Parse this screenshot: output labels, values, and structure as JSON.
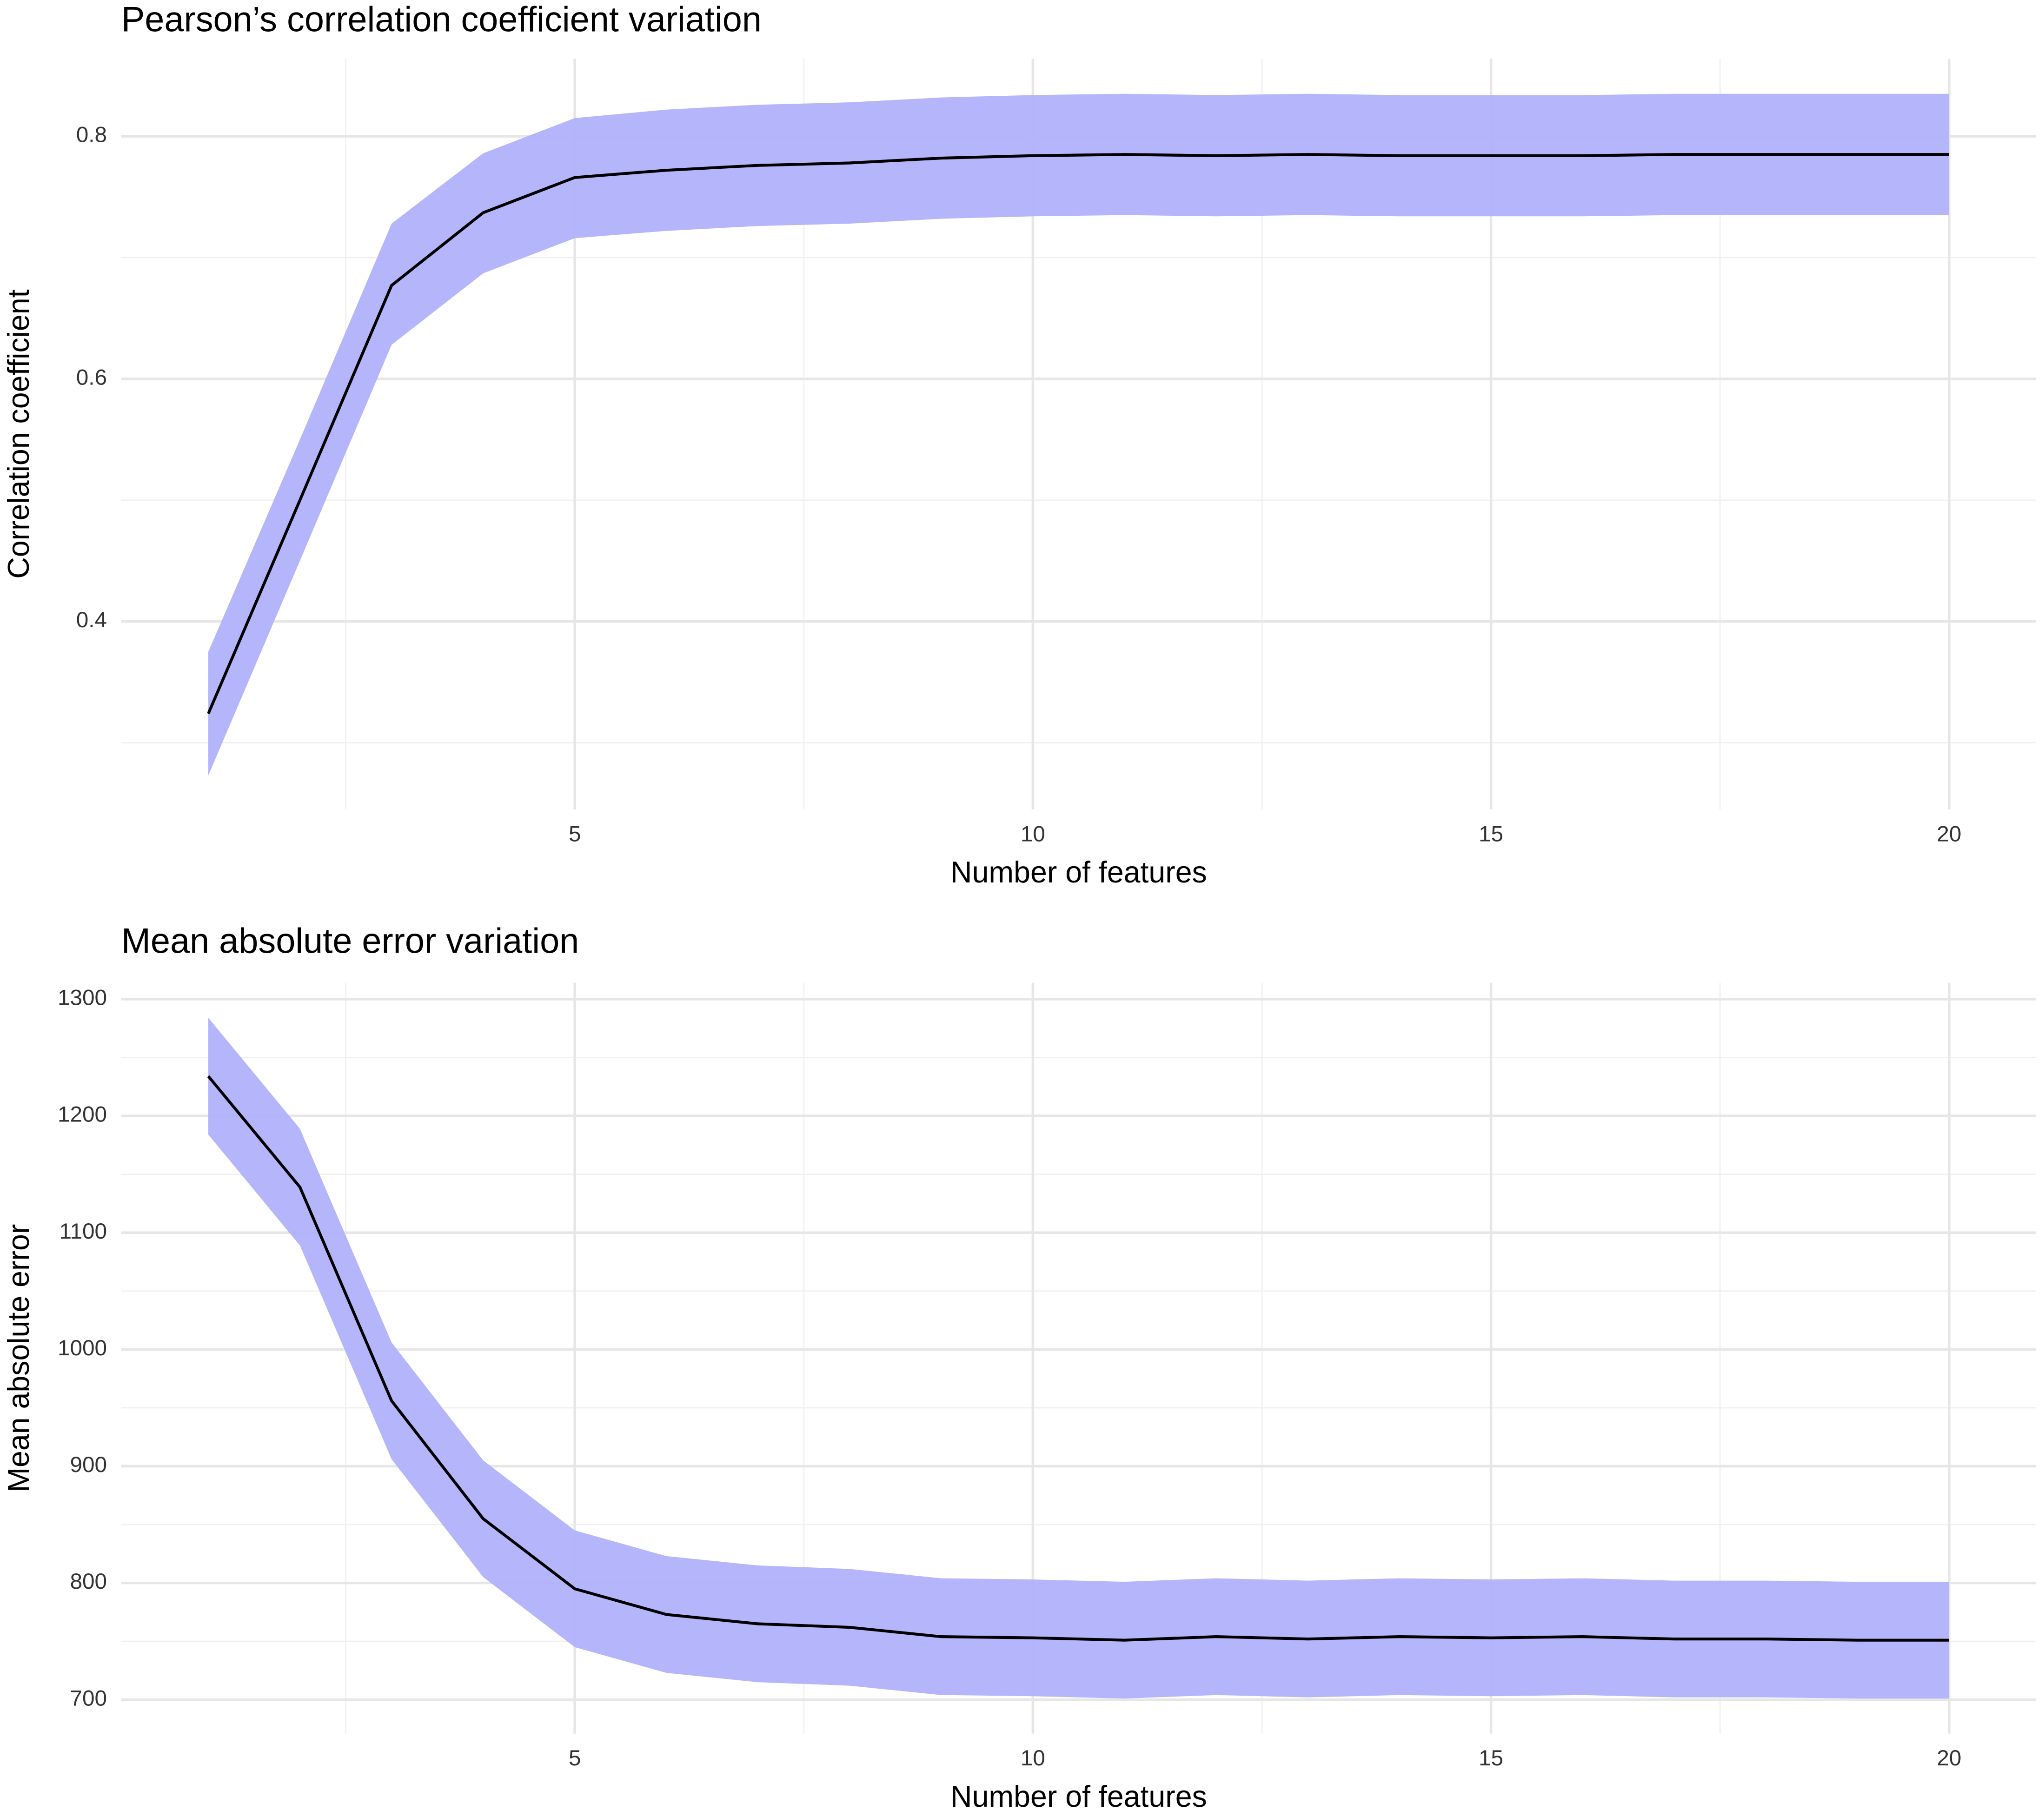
{
  "chart_data": [
    {
      "type": "line",
      "title": "Pearson’s correlation coefficient variation",
      "x_label": "Number of features",
      "y_label": "Correlation coefficient",
      "x": [
        1,
        2,
        3,
        4,
        5,
        6,
        7,
        8,
        9,
        10,
        11,
        12,
        13,
        14,
        15,
        16,
        17,
        18,
        19,
        20
      ],
      "line": {
        "color": "#000000",
        "values": [
          0.324,
          0.5,
          0.677,
          0.737,
          0.766,
          0.772,
          0.776,
          0.778,
          0.782,
          0.784,
          0.785,
          0.784,
          0.785,
          0.784,
          0.784,
          0.784,
          0.785,
          0.785,
          0.785,
          0.785
        ]
      },
      "band": {
        "color": "#b1b1fb",
        "upper": [
          0.375,
          0.55,
          0.728,
          0.786,
          0.815,
          0.822,
          0.826,
          0.828,
          0.832,
          0.834,
          0.835,
          0.834,
          0.835,
          0.834,
          0.834,
          0.834,
          0.835,
          0.835,
          0.835,
          0.835
        ],
        "lower": [
          0.273,
          0.45,
          0.628,
          0.687,
          0.716,
          0.722,
          0.726,
          0.728,
          0.732,
          0.734,
          0.735,
          0.734,
          0.735,
          0.734,
          0.734,
          0.734,
          0.735,
          0.735,
          0.735,
          0.735
        ]
      },
      "xlim": [
        0.05,
        20.95
      ],
      "xticks": [
        5,
        10,
        15,
        20
      ],
      "xminor": [
        2.5,
        7.5,
        12.5,
        17.5
      ],
      "ylim": [
        0.245,
        0.864
      ],
      "yticks": [
        0.4,
        0.6,
        0.8
      ],
      "yminor": [
        0.3,
        0.5,
        0.7
      ],
      "grid": true
    },
    {
      "type": "line",
      "title": "Mean absolute error variation",
      "x_label": "Number of features",
      "y_label": "Mean absolute error",
      "x": [
        1,
        2,
        3,
        4,
        5,
        6,
        7,
        8,
        9,
        10,
        11,
        12,
        13,
        14,
        15,
        16,
        17,
        18,
        19,
        20
      ],
      "line": {
        "color": "#000000",
        "values": [
          1234,
          1139,
          956,
          855,
          795,
          773,
          765,
          762,
          754,
          753,
          751,
          754,
          752,
          754,
          753,
          754,
          752,
          752,
          751,
          751
        ]
      },
      "band": {
        "color": "#b1b1fb",
        "upper": [
          1284,
          1189,
          1006,
          905,
          845,
          823,
          815,
          812,
          804,
          803,
          801,
          804,
          802,
          804,
          803,
          804,
          802,
          802,
          801,
          801
        ],
        "lower": [
          1184,
          1089,
          906,
          805,
          745,
          723,
          715,
          712,
          704,
          703,
          701,
          704,
          702,
          704,
          703,
          704,
          702,
          702,
          701,
          701
        ]
      },
      "xlim": [
        0.05,
        20.95
      ],
      "xticks": [
        5,
        10,
        15,
        20
      ],
      "xminor": [
        2.5,
        7.5,
        12.5,
        17.5
      ],
      "ylim": [
        671,
        1314
      ],
      "yticks": [
        700,
        800,
        900,
        1000,
        1100,
        1200,
        1300
      ],
      "yminor": [
        750,
        850,
        950,
        1050,
        1150,
        1250
      ],
      "grid": true
    }
  ]
}
